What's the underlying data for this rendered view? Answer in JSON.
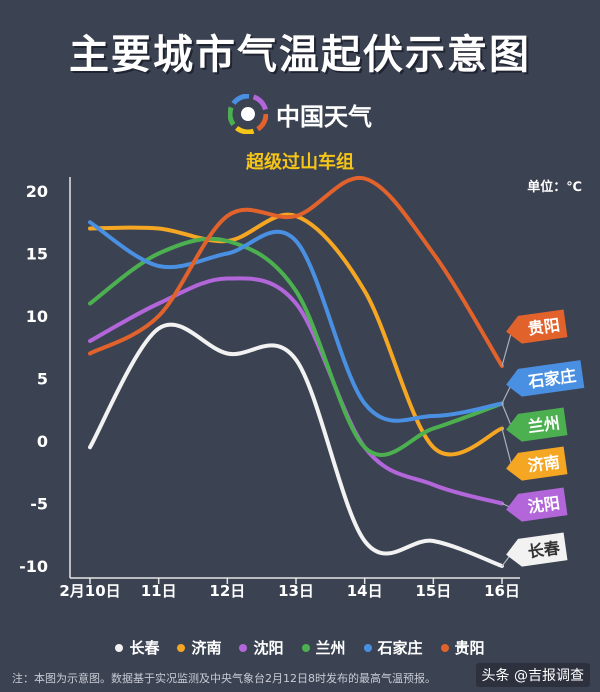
{
  "header": {
    "title": "主要城市气温起伏示意图",
    "brand": "中国天气",
    "subtitle": "超级过山车组",
    "unit": "单位：℃"
  },
  "footer": {
    "note": "注：本图为示意图。数据基于实况监测及中央气象台2月12日8时发布的最高气温预报。",
    "source": "头条 @吉报调查"
  },
  "chart_data": {
    "type": "line",
    "title": "主要城市气温起伏示意图",
    "subtitle": "超级过山车组",
    "ylabel": "单位：℃",
    "x": [
      "2月10日",
      "11日",
      "12日",
      "13日",
      "14日",
      "15日",
      "16日"
    ],
    "ylim": [
      -10,
      20
    ],
    "yticks": [
      20,
      15,
      10,
      5,
      0,
      -5,
      -10
    ],
    "grid": false,
    "legend_position": "bottom",
    "series": [
      {
        "name": "长春",
        "color": "#f2f2f2",
        "values": [
          -0.5,
          9,
          7,
          6.5,
          -8,
          -8,
          -10
        ]
      },
      {
        "name": "济南",
        "color": "#f5a623",
        "values": [
          17,
          17,
          16,
          18,
          12,
          -0.5,
          1
        ]
      },
      {
        "name": "沈阳",
        "color": "#b266d9",
        "values": [
          8,
          11,
          13,
          11,
          -0.5,
          -3.5,
          -5
        ]
      },
      {
        "name": "兰州",
        "color": "#4cb050",
        "values": [
          11,
          15,
          16,
          12,
          -0.5,
          1,
          3
        ]
      },
      {
        "name": "石家庄",
        "color": "#4a90e2",
        "values": [
          17.5,
          14,
          15,
          16,
          3,
          2,
          3
        ]
      },
      {
        "name": "贵阳",
        "color": "#e2622c",
        "values": [
          7,
          10,
          18,
          18,
          21,
          15,
          6
        ]
      }
    ]
  }
}
